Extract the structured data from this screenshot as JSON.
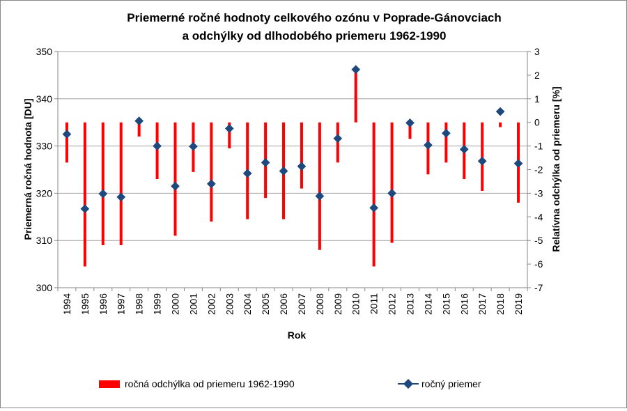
{
  "chart_data": {
    "type": "bar+line",
    "title_line1": "Priemerné ročné hodnoty celkového ozónu v Poprade-Gánovciach",
    "title_line2": "a odchýlky od dlhodobého priemeru 1962-1990",
    "xlabel": "Rok",
    "ylabel_left": "Priemerná ročná hodnota [DU]",
    "ylabel_right": "Relatívna odchýlka od priemeru [%]",
    "ylim_left": [
      300,
      350
    ],
    "ylim_right": [
      -7,
      3
    ],
    "yticks_left": [
      "300",
      "310",
      "320",
      "330",
      "340",
      "350"
    ],
    "yticks_right": [
      "-7",
      "-6",
      "-5",
      "-4",
      "-3",
      "-2",
      "-1",
      "0",
      "1",
      "2",
      "3"
    ],
    "grid": "horizontal",
    "categories": [
      "1994",
      "1995",
      "1996",
      "1997",
      "1998",
      "1999",
      "2000",
      "2001",
      "2002",
      "2003",
      "2004",
      "2005",
      "2006",
      "2007",
      "2008",
      "2009",
      "2010",
      "2011",
      "2012",
      "2013",
      "2014",
      "2015",
      "2016",
      "2017",
      "2018",
      "2019"
    ],
    "series": [
      {
        "name": "ročná odchýlka od priemeru 1962-1990",
        "kind": "bar",
        "axis": "right",
        "color": "#ff0000",
        "values": [
          -1.7,
          -6.1,
          -5.2,
          -5.2,
          -0.6,
          -2.4,
          -4.8,
          -2.1,
          -4.2,
          -1.1,
          -4.1,
          -3.2,
          -4.1,
          -2.8,
          -5.4,
          -1.7,
          2.2,
          -6.1,
          -5.1,
          -0.7,
          -2.2,
          -1.7,
          -2.4,
          -2.9,
          -0.2,
          -3.4
        ]
      },
      {
        "name": "ročný priemer",
        "kind": "line-markers",
        "axis": "left",
        "color": "#1f497d",
        "values": [
          332.5,
          316.7,
          319.9,
          319.2,
          335.3,
          330.0,
          321.5,
          329.9,
          322.0,
          333.7,
          324.2,
          326.5,
          324.7,
          325.7,
          319.4,
          331.6,
          346.2,
          316.9,
          320.0,
          334.9,
          330.2,
          332.7,
          329.3,
          326.8,
          337.3,
          326.3
        ]
      }
    ],
    "legend": {
      "position": "bottom",
      "bar_label": "ročná odchýlka od priemeru 1962-1990",
      "line_label": "ročný priemer"
    }
  }
}
